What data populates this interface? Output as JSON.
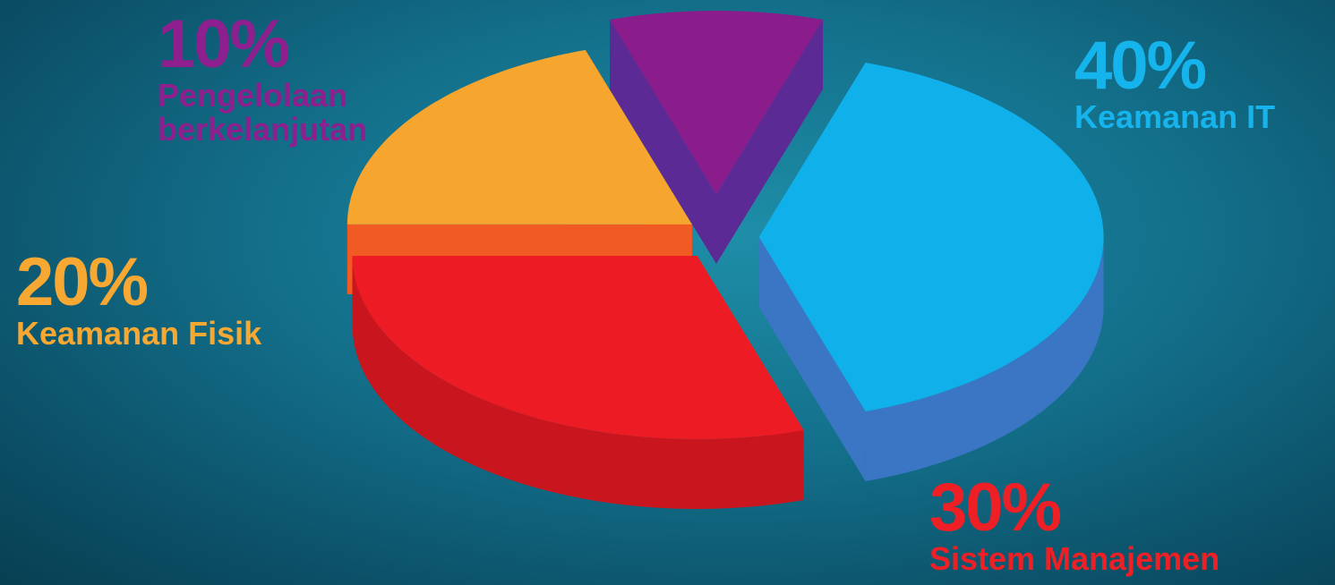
{
  "chart_data": {
    "type": "pie",
    "style": "3d-exploded",
    "slices": [
      {
        "label": "Keamanan IT",
        "value": 40,
        "value_text": "40%",
        "color": "#10b0ea",
        "side_color": "#3a76c4",
        "text_color": "#15b4ec"
      },
      {
        "label": "Sistem Manajemen",
        "value": 30,
        "value_text": "30%",
        "color": "#ed1c24",
        "side_color": "#c9161e",
        "text_color": "#ef1f26"
      },
      {
        "label": "Keamanan Fisik",
        "value": 20,
        "value_text": "20%",
        "color": "#f6a52f",
        "side_color": "#f15a22",
        "text_color": "#f7a833"
      },
      {
        "label": "Pengelolaan berkelanjutan",
        "value": 10,
        "value_text": "10%",
        "color": "#8b1c8b",
        "side_color": "#5c2a95",
        "text_color": "#8e1f8e"
      }
    ],
    "background": "#136f8a"
  }
}
